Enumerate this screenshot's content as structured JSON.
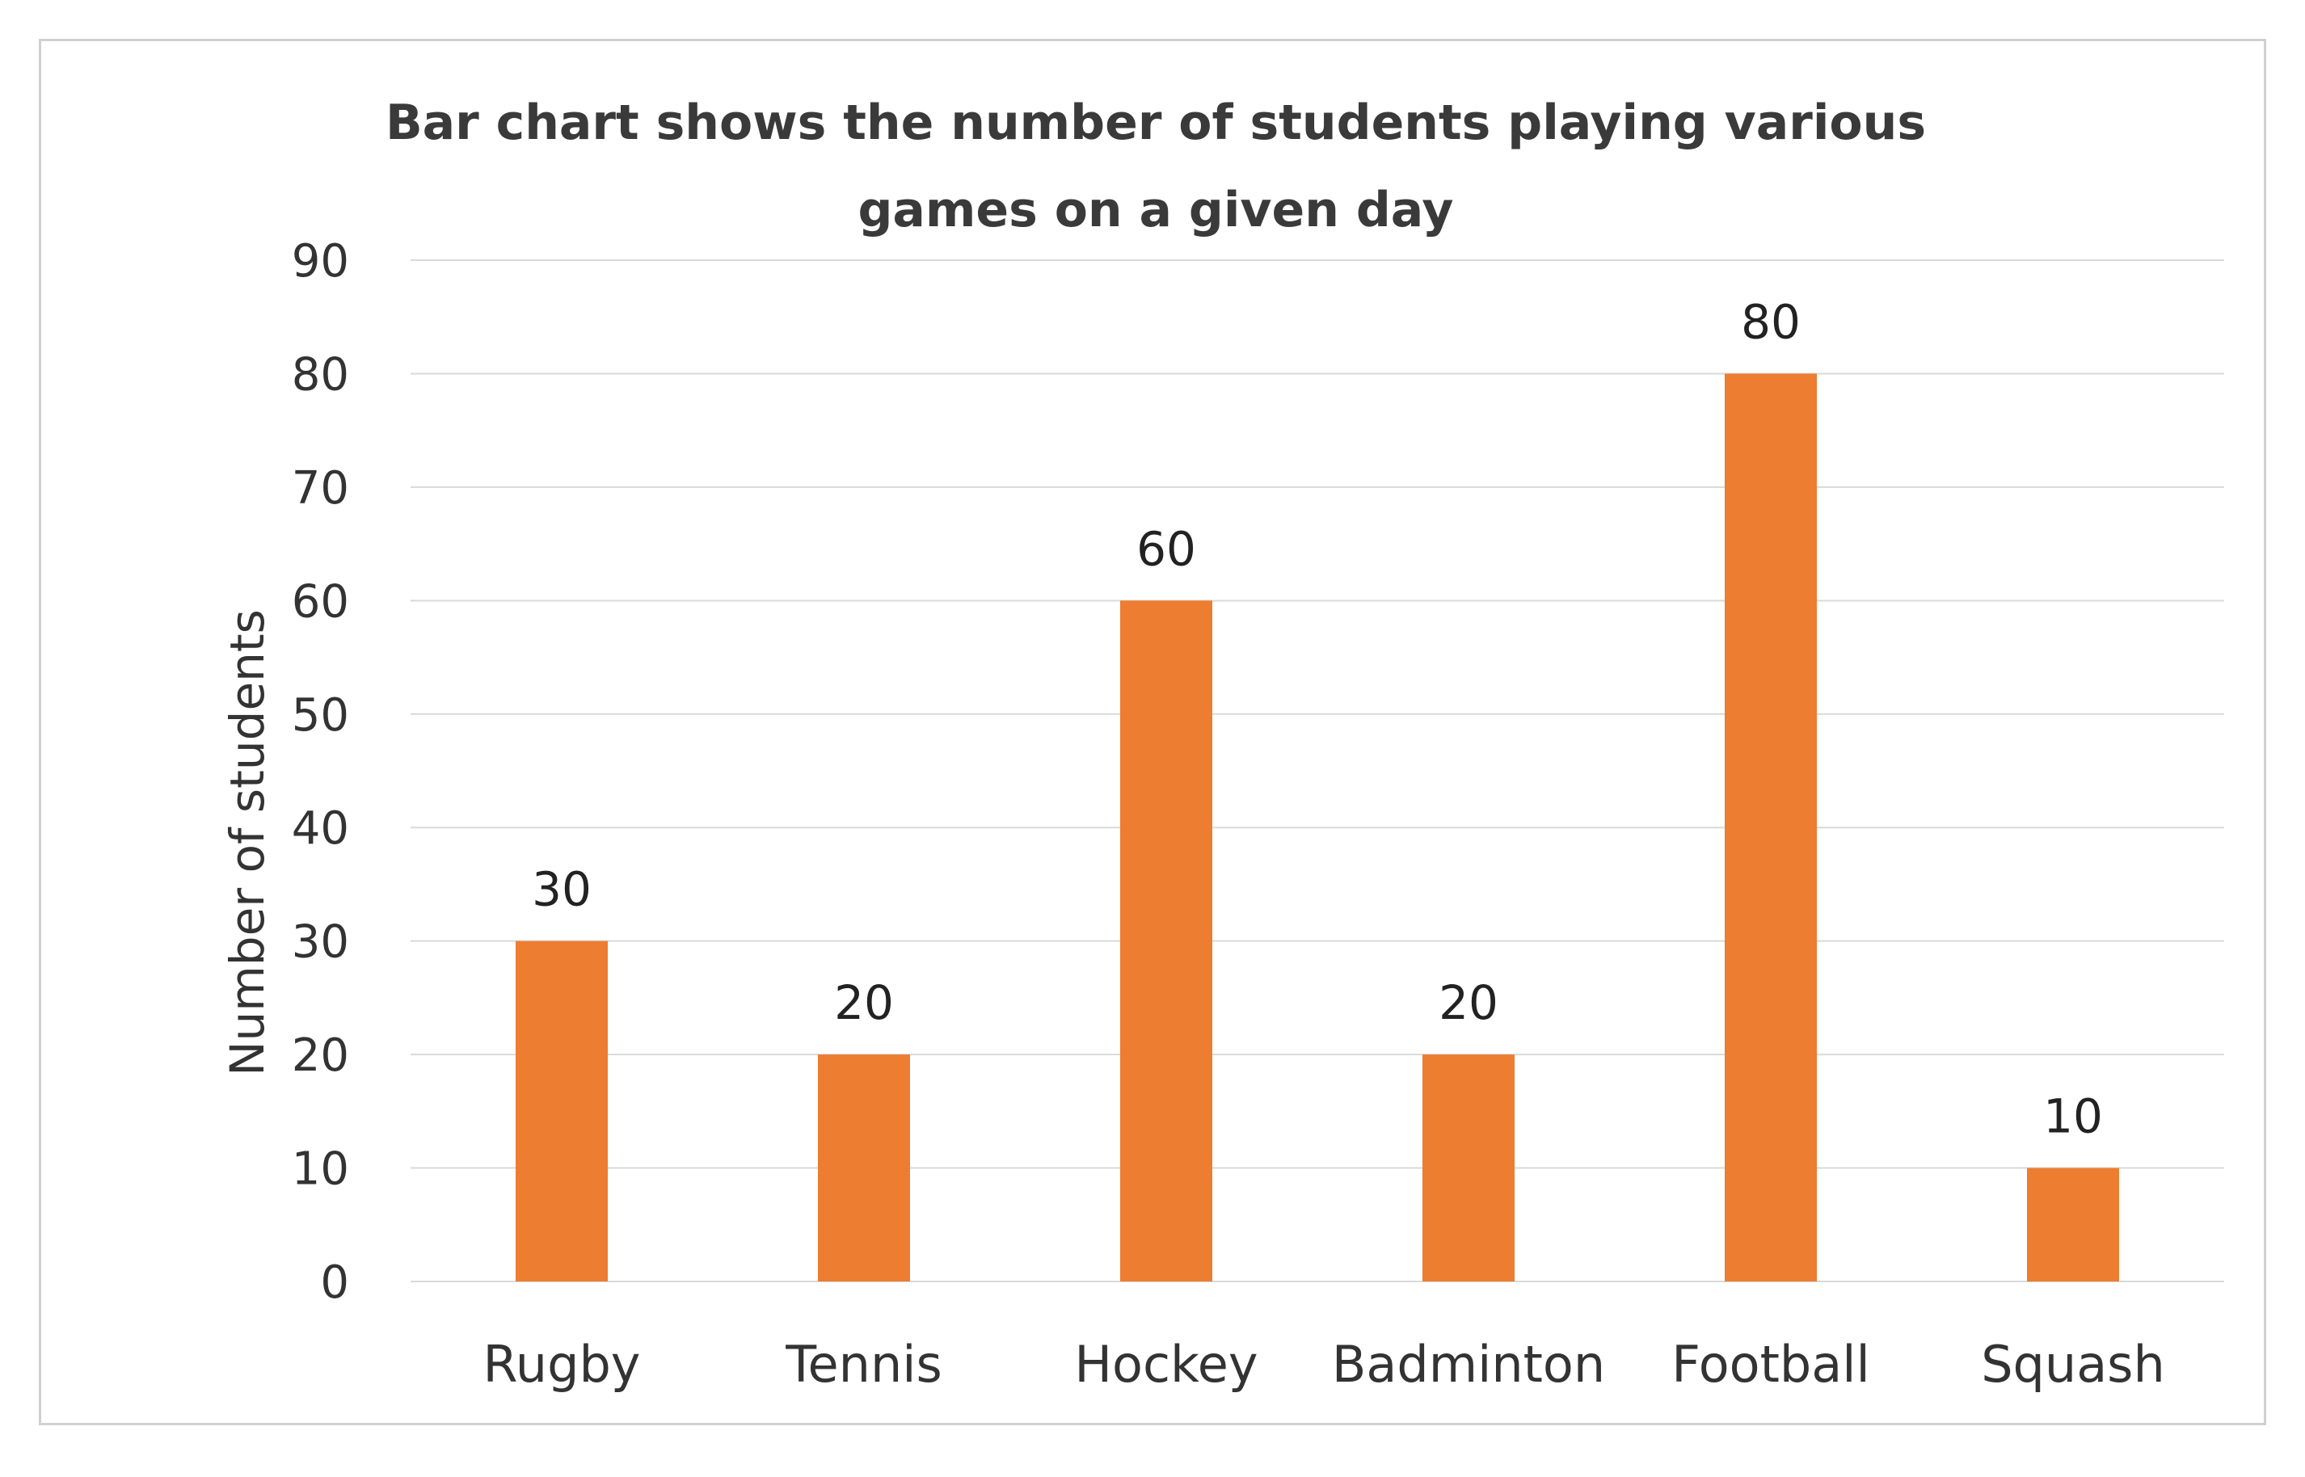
{
  "chart_data": {
    "type": "bar",
    "title_lines": [
      "Bar chart shows the number of students playing various",
      "games on a given day"
    ],
    "xlabel": "",
    "ylabel": "Number of students",
    "categories": [
      "Rugby",
      "Tennis",
      "Hockey",
      "Badminton",
      "Football",
      "Squash"
    ],
    "values": [
      30,
      20,
      60,
      20,
      80,
      10
    ],
    "data_labels": [
      "30",
      "20",
      "60",
      "20",
      "80",
      "10"
    ],
    "ylim": [
      0,
      90
    ],
    "yticks": [
      0,
      10,
      20,
      30,
      40,
      50,
      60,
      70,
      80,
      90
    ],
    "ytick_labels": [
      "0",
      "10",
      "20",
      "30",
      "40",
      "50",
      "60",
      "70",
      "80",
      "90"
    ],
    "grid": true,
    "legend": "none",
    "bar_color": "#ED7D31"
  }
}
